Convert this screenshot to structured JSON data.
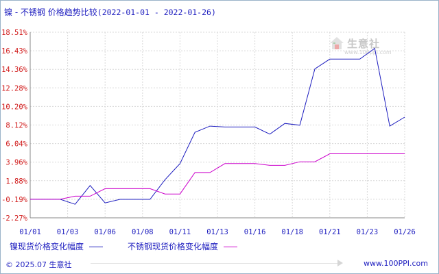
{
  "title": {
    "prefix": "镍 - 不锈钢 价格趋势比较",
    "range": "(2022-01-01 - 2022-01-26)"
  },
  "watermark": {
    "name": "生意社",
    "url": "www.100ppi.com"
  },
  "legend": [
    {
      "label": "镍现货价格变化幅度",
      "color": "#1d1dbf"
    },
    {
      "label": "不锈钢现货价格变化幅度",
      "color": "#cc00cc"
    }
  ],
  "footer": {
    "copyright": "© 2025.07 生意社",
    "site": "www.100PPI.com"
  },
  "chart_data": {
    "type": "line",
    "y_ticks": [
      "18.51%",
      "16.43%",
      "14.36%",
      "12.28%",
      "10.20%",
      "8.12%",
      "6.04%",
      "3.96%",
      "1.88%",
      "-0.19%",
      "-2.27%"
    ],
    "ylim": [
      -2.27,
      18.51
    ],
    "x_ticks": [
      "01/01",
      "01/03",
      "01/06",
      "01/08",
      "01/11",
      "01/13",
      "01/16",
      "01/18",
      "01/21",
      "01/23",
      "01/26"
    ],
    "xlim": [
      1,
      26
    ],
    "grid": true,
    "legend_position": "bottom",
    "series": [
      {
        "name": "镍现货价格变化幅度",
        "color": "#1d1dbf",
        "points": [
          [
            1,
            -0.19
          ],
          [
            3,
            -0.19
          ],
          [
            4,
            -0.75
          ],
          [
            5,
            1.35
          ],
          [
            6,
            -0.6
          ],
          [
            7,
            -0.2
          ],
          [
            9,
            -0.2
          ],
          [
            10,
            2.0
          ],
          [
            11,
            3.8
          ],
          [
            12,
            7.3
          ],
          [
            13,
            8.0
          ],
          [
            14,
            7.9
          ],
          [
            16,
            7.9
          ],
          [
            17,
            7.1
          ],
          [
            18,
            8.3
          ],
          [
            19,
            8.1
          ],
          [
            20,
            14.4
          ],
          [
            21,
            15.5
          ],
          [
            23,
            15.5
          ],
          [
            24,
            16.7
          ],
          [
            25,
            8.0
          ],
          [
            26,
            9.0
          ]
        ]
      },
      {
        "name": "不锈钢现货价格变化幅度",
        "color": "#cc00cc",
        "points": [
          [
            1,
            -0.19
          ],
          [
            3,
            -0.19
          ],
          [
            4,
            0.15
          ],
          [
            5,
            0.15
          ],
          [
            6,
            1.0
          ],
          [
            7,
            1.0
          ],
          [
            9,
            1.0
          ],
          [
            10,
            0.4
          ],
          [
            11,
            0.4
          ],
          [
            12,
            2.8
          ],
          [
            13,
            2.8
          ],
          [
            14,
            3.8
          ],
          [
            16,
            3.8
          ],
          [
            17,
            3.6
          ],
          [
            18,
            3.6
          ],
          [
            19,
            4.0
          ],
          [
            20,
            4.0
          ],
          [
            21,
            4.9
          ],
          [
            26,
            4.9
          ]
        ]
      }
    ]
  }
}
